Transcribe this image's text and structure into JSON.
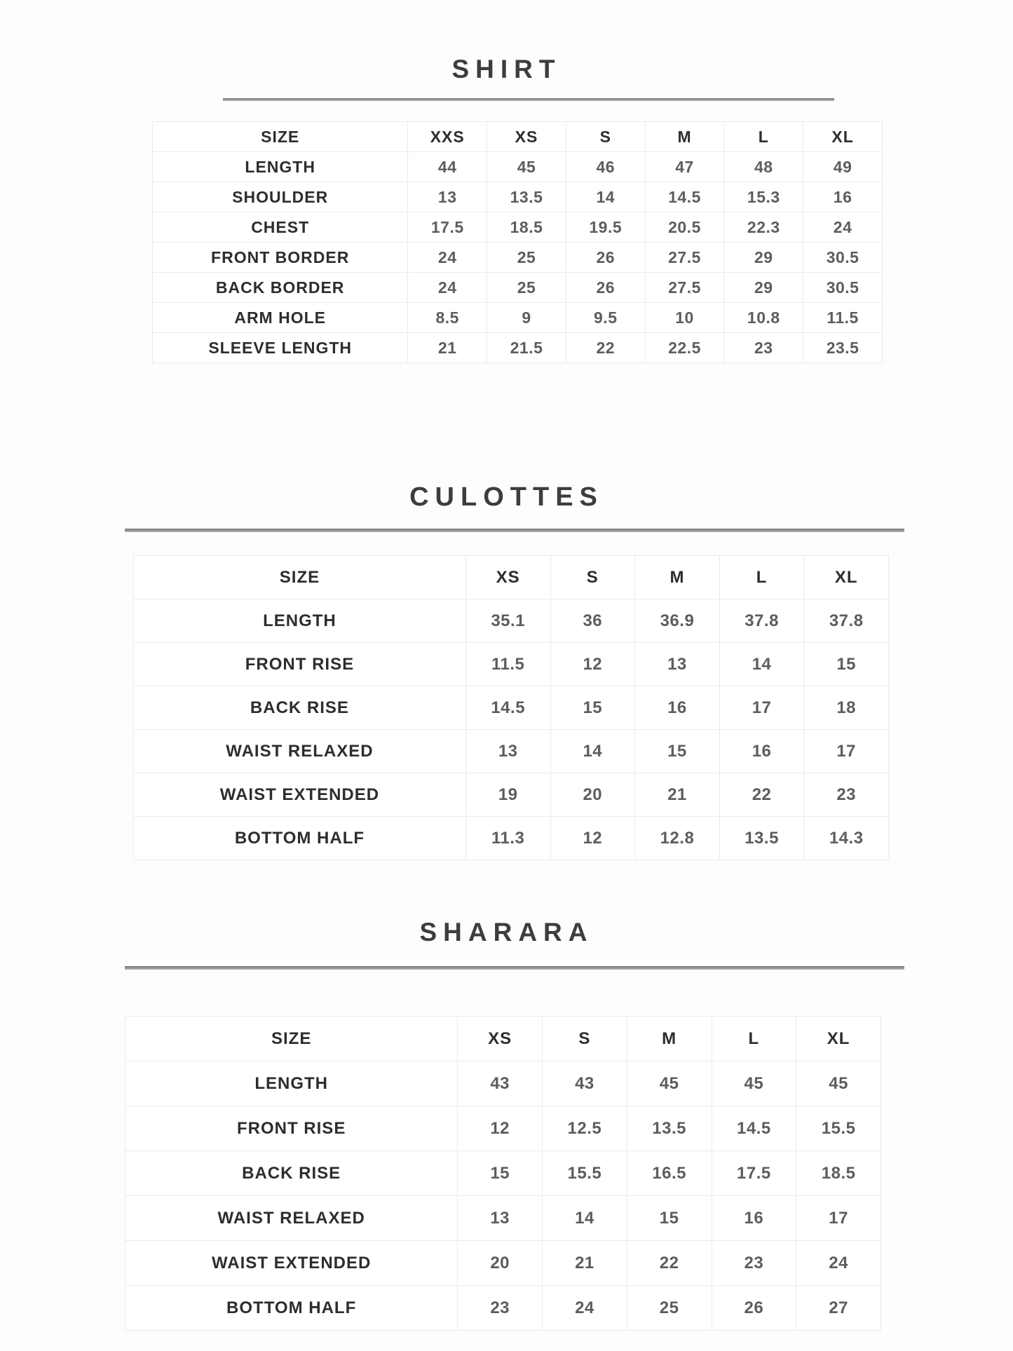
{
  "colors": {
    "background": "#fdfdfd",
    "title_text": "#3d3d3d",
    "label_text": "#2d2d2d",
    "value_text": "#5d5d5d",
    "grid_line": "#ebebeb",
    "divider": "#8c8c8c"
  },
  "sections": [
    {
      "title": "SHIRT",
      "columns": [
        "SIZE",
        "XXS",
        "XS",
        "S",
        "M",
        "L",
        "XL"
      ],
      "rows": [
        {
          "label": "LENGTH",
          "values": [
            "44",
            "45",
            "46",
            "47",
            "48",
            "49"
          ]
        },
        {
          "label": "SHOULDER",
          "values": [
            "13",
            "13.5",
            "14",
            "14.5",
            "15.3",
            "16"
          ]
        },
        {
          "label": "CHEST",
          "values": [
            "17.5",
            "18.5",
            "19.5",
            "20.5",
            "22.3",
            "24"
          ]
        },
        {
          "label": "FRONT BORDER",
          "values": [
            "24",
            "25",
            "26",
            "27.5",
            "29",
            "30.5"
          ]
        },
        {
          "label": "BACK BORDER",
          "values": [
            "24",
            "25",
            "26",
            "27.5",
            "29",
            "30.5"
          ]
        },
        {
          "label": "ARM HOLE",
          "values": [
            "8.5",
            "9",
            "9.5",
            "10",
            "10.8",
            "11.5"
          ]
        },
        {
          "label": "SLEEVE LENGTH",
          "values": [
            "21",
            "21.5",
            "22",
            "22.5",
            "23",
            "23.5"
          ]
        }
      ]
    },
    {
      "title": "CULOTTES",
      "columns": [
        "SIZE",
        "XS",
        "S",
        "M",
        "L",
        "XL"
      ],
      "rows": [
        {
          "label": "LENGTH",
          "values": [
            "35.1",
            "36",
            "36.9",
            "37.8",
            "37.8"
          ]
        },
        {
          "label": "FRONT RISE",
          "values": [
            "11.5",
            "12",
            "13",
            "14",
            "15"
          ]
        },
        {
          "label": "BACK RISE",
          "values": [
            "14.5",
            "15",
            "16",
            "17",
            "18"
          ]
        },
        {
          "label": "WAIST RELAXED",
          "values": [
            "13",
            "14",
            "15",
            "16",
            "17"
          ]
        },
        {
          "label": "WAIST EXTENDED",
          "values": [
            "19",
            "20",
            "21",
            "22",
            "23"
          ]
        },
        {
          "label": "BOTTOM HALF",
          "values": [
            "11.3",
            "12",
            "12.8",
            "13.5",
            "14.3"
          ]
        }
      ]
    },
    {
      "title": "SHARARA",
      "columns": [
        "SIZE",
        "XS",
        "S",
        "M",
        "L",
        "XL"
      ],
      "rows": [
        {
          "label": "LENGTH",
          "values": [
            "43",
            "43",
            "45",
            "45",
            "45"
          ]
        },
        {
          "label": "FRONT RISE",
          "values": [
            "12",
            "12.5",
            "13.5",
            "14.5",
            "15.5"
          ]
        },
        {
          "label": "BACK RISE",
          "values": [
            "15",
            "15.5",
            "16.5",
            "17.5",
            "18.5"
          ]
        },
        {
          "label": "WAIST RELAXED",
          "values": [
            "13",
            "14",
            "15",
            "16",
            "17"
          ]
        },
        {
          "label": "WAIST EXTENDED",
          "values": [
            "20",
            "21",
            "22",
            "23",
            "24"
          ]
        },
        {
          "label": "BOTTOM HALF",
          "values": [
            "23",
            "24",
            "25",
            "26",
            "27"
          ]
        }
      ]
    }
  ]
}
